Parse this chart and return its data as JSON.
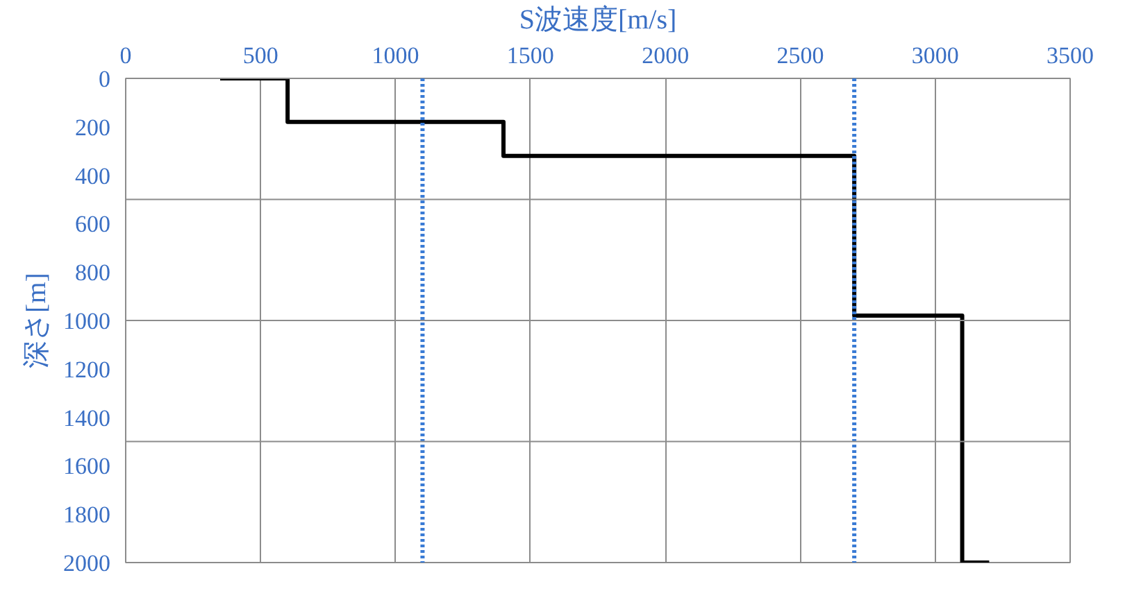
{
  "chart_data": {
    "type": "line",
    "xlabel": "S波速度[m/s]",
    "ylabel": "深さ[m]",
    "x": [
      350,
      600,
      600,
      1400,
      1400,
      2700,
      2700,
      3100,
      3100,
      3200
    ],
    "series": [
      {
        "color": "#000000",
        "values": [
          0,
          0,
          180,
          180,
          320,
          320,
          980,
          980,
          2000,
          2000
        ]
      }
    ],
    "xlim": [
      0,
      3500
    ],
    "xticks": [
      0,
      500,
      1000,
      1500,
      2000,
      2500,
      3000,
      3500
    ],
    "ylim": [
      2000,
      0
    ],
    "yticks": [
      0,
      200,
      400,
      600,
      800,
      1000,
      1200,
      1400,
      1600,
      1800,
      2000
    ],
    "grid": "x",
    "marker": "none",
    "line_style": "solid",
    "ref_lines": [
      {
        "axis": "x",
        "value": 1100,
        "label": null,
        "color": "#3a7bd5",
        "line_style": "dotted"
      },
      {
        "axis": "x",
        "value": 2700,
        "label": null,
        "color": "#3a7bd5",
        "line_style": "dotted"
      },
      {
        "axis": "y",
        "value": 500,
        "label": null,
        "color": "#8c8c8c",
        "line_style": "solid"
      },
      {
        "axis": "y",
        "value": 1000,
        "label": null,
        "color": "#8c8c8c",
        "line_style": "solid"
      },
      {
        "axis": "y",
        "value": 1500,
        "label": null,
        "color": "#8c8c8c",
        "line_style": "solid"
      }
    ]
  }
}
